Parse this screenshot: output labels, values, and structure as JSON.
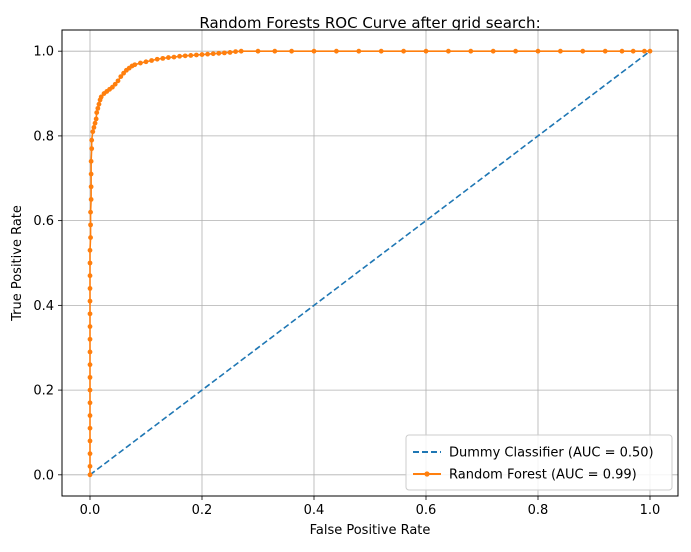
{
  "chart_data": {
    "type": "line",
    "title": "Random Forests ROC Curve after grid search:",
    "xlabel": "False Positive Rate",
    "ylabel": "True Positive Rate",
    "xlim": [
      -0.05,
      1.05
    ],
    "ylim": [
      -0.05,
      1.05
    ],
    "grid": true,
    "legend_position": "lower-right",
    "xticks": [
      "0.0",
      "0.2",
      "0.4",
      "0.6",
      "0.8",
      "1.0"
    ],
    "yticks": [
      "0.0",
      "0.2",
      "0.4",
      "0.6",
      "0.8",
      "1.0"
    ],
    "series": [
      {
        "name": "Dummy Classifier (AUC = 0.50)",
        "style": "dashed",
        "marker": "none",
        "color": "#1f77b4",
        "points": [
          [
            0,
            0
          ],
          [
            1,
            1
          ]
        ]
      },
      {
        "name": "Random Forest (AUC = 0.99)",
        "style": "solid",
        "marker": "dot",
        "color": "#ff7f0e",
        "points": [
          [
            0.0,
            0.0
          ],
          [
            0.0,
            0.02
          ],
          [
            0.0,
            0.05
          ],
          [
            0.0,
            0.08
          ],
          [
            0.0,
            0.11
          ],
          [
            0.0,
            0.14
          ],
          [
            0.0,
            0.17
          ],
          [
            0.0,
            0.2
          ],
          [
            0.0,
            0.23
          ],
          [
            0.0,
            0.26
          ],
          [
            0.0,
            0.29
          ],
          [
            0.0,
            0.32
          ],
          [
            0.0,
            0.35
          ],
          [
            0.0,
            0.38
          ],
          [
            0.0,
            0.41
          ],
          [
            0.0,
            0.44
          ],
          [
            0.0,
            0.47
          ],
          [
            0.0,
            0.5
          ],
          [
            0.0,
            0.53
          ],
          [
            0.001,
            0.56
          ],
          [
            0.001,
            0.59
          ],
          [
            0.001,
            0.62
          ],
          [
            0.002,
            0.65
          ],
          [
            0.002,
            0.68
          ],
          [
            0.002,
            0.71
          ],
          [
            0.002,
            0.74
          ],
          [
            0.003,
            0.77
          ],
          [
            0.003,
            0.79
          ],
          [
            0.005,
            0.81
          ],
          [
            0.007,
            0.82
          ],
          [
            0.009,
            0.83
          ],
          [
            0.011,
            0.84
          ],
          [
            0.012,
            0.855
          ],
          [
            0.014,
            0.865
          ],
          [
            0.016,
            0.875
          ],
          [
            0.018,
            0.885
          ],
          [
            0.02,
            0.892
          ],
          [
            0.025,
            0.9
          ],
          [
            0.03,
            0.905
          ],
          [
            0.035,
            0.91
          ],
          [
            0.04,
            0.915
          ],
          [
            0.045,
            0.922
          ],
          [
            0.05,
            0.93
          ],
          [
            0.055,
            0.94
          ],
          [
            0.06,
            0.948
          ],
          [
            0.065,
            0.955
          ],
          [
            0.07,
            0.96
          ],
          [
            0.075,
            0.965
          ],
          [
            0.08,
            0.968
          ],
          [
            0.09,
            0.972
          ],
          [
            0.1,
            0.975
          ],
          [
            0.11,
            0.978
          ],
          [
            0.12,
            0.981
          ],
          [
            0.13,
            0.983
          ],
          [
            0.14,
            0.985
          ],
          [
            0.15,
            0.986
          ],
          [
            0.16,
            0.988
          ],
          [
            0.17,
            0.989
          ],
          [
            0.18,
            0.99
          ],
          [
            0.19,
            0.991
          ],
          [
            0.2,
            0.992
          ],
          [
            0.21,
            0.993
          ],
          [
            0.22,
            0.994
          ],
          [
            0.23,
            0.995
          ],
          [
            0.24,
            0.996
          ],
          [
            0.25,
            0.997
          ],
          [
            0.26,
            0.999
          ],
          [
            0.27,
            1.0
          ],
          [
            0.3,
            1.0
          ],
          [
            0.33,
            1.0
          ],
          [
            0.36,
            1.0
          ],
          [
            0.4,
            1.0
          ],
          [
            0.44,
            1.0
          ],
          [
            0.48,
            1.0
          ],
          [
            0.52,
            1.0
          ],
          [
            0.56,
            1.0
          ],
          [
            0.6,
            1.0
          ],
          [
            0.64,
            1.0
          ],
          [
            0.68,
            1.0
          ],
          [
            0.72,
            1.0
          ],
          [
            0.76,
            1.0
          ],
          [
            0.8,
            1.0
          ],
          [
            0.84,
            1.0
          ],
          [
            0.88,
            1.0
          ],
          [
            0.92,
            1.0
          ],
          [
            0.95,
            1.0
          ],
          [
            0.97,
            1.0
          ],
          [
            0.99,
            1.0
          ],
          [
            1.0,
            1.0
          ]
        ]
      }
    ]
  }
}
